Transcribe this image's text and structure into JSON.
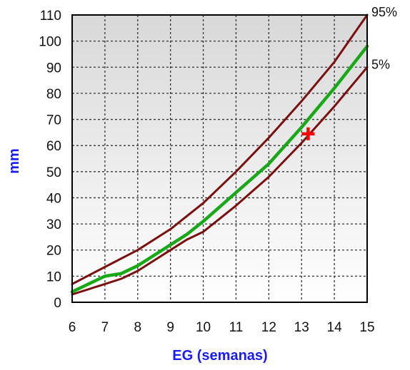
{
  "chart_data": {
    "type": "line",
    "xlabel": "EG (semanas)",
    "ylabel": "mm",
    "xlim": [
      6,
      15
    ],
    "ylim": [
      0,
      110
    ],
    "x_ticks": [
      6,
      7,
      8,
      9,
      10,
      11,
      12,
      13,
      14,
      15
    ],
    "y_ticks": [
      0,
      10,
      20,
      30,
      40,
      50,
      60,
      70,
      80,
      90,
      100,
      110
    ],
    "grid": true,
    "colors": {
      "percentile_lines": "#7a1010",
      "median_line": "#18a818",
      "marker": "#ff0000",
      "axis_title": "#1a1aff",
      "plot_background_top": "#d8d8d8",
      "plot_background_bottom": "#ffffff"
    },
    "series": [
      {
        "name": "95%",
        "x": [
          6,
          7,
          8,
          9,
          10,
          11,
          12,
          13,
          14,
          15
        ],
        "values": [
          7,
          13.5,
          20,
          28,
          38,
          50,
          63,
          77,
          92,
          110
        ]
      },
      {
        "x": [
          6,
          7,
          7.5,
          8,
          8.5,
          9,
          9.5,
          10,
          11,
          12,
          13,
          14,
          15
        ],
        "values": [
          4,
          10,
          11,
          14,
          18,
          22,
          26,
          31,
          42,
          53,
          67,
          82,
          98
        ]
      },
      {
        "name": "5%",
        "x": [
          6,
          7,
          7.5,
          8,
          8.5,
          9,
          9.5,
          10,
          10.5,
          11,
          12,
          13,
          14,
          15
        ],
        "values": [
          3,
          7,
          9,
          12,
          16,
          20,
          24,
          27,
          32,
          37,
          48,
          61,
          75,
          90
        ]
      }
    ],
    "marker": {
      "x": 13.2,
      "y": 64.5
    }
  }
}
